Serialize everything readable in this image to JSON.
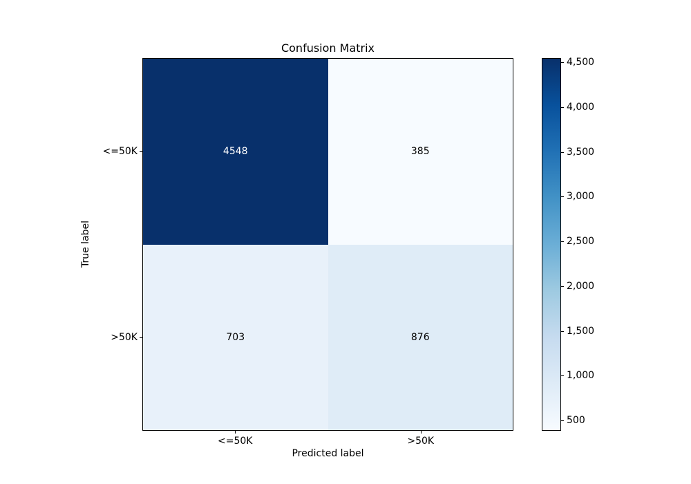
{
  "chart_data": {
    "type": "heatmap",
    "title": "Confusion Matrix",
    "xlabel": "Predicted label",
    "ylabel": "True label",
    "x_categories": [
      "<=50K",
      ">50K"
    ],
    "y_categories": [
      "<=50K",
      ">50K"
    ],
    "matrix": [
      [
        4548,
        385
      ],
      [
        703,
        876
      ]
    ],
    "vmin": 385,
    "vmax": 4548,
    "cell_colors": [
      [
        "#08306b",
        "#f7fbff"
      ],
      [
        "#e8f1fa",
        "#dfecf7"
      ]
    ],
    "cell_text_colors": [
      [
        "#ffffff",
        "#000000"
      ],
      [
        "#000000",
        "#000000"
      ]
    ],
    "grid": false,
    "colorbar": {
      "position": "right",
      "colormap": "Blues",
      "gradient_stops": [
        "#f7fbff",
        "#deebf7",
        "#c6dbef",
        "#9ecae1",
        "#6baed6",
        "#4292c6",
        "#2171b5",
        "#08519c",
        "#08306b"
      ],
      "tick_values": [
        500,
        1000,
        1500,
        2000,
        2500,
        3000,
        3500,
        4000,
        4500
      ],
      "tick_labels": [
        "500",
        "1,000",
        "1,500",
        "2,000",
        "2,500",
        "3,000",
        "3,500",
        "4,000",
        "4,500"
      ]
    }
  }
}
